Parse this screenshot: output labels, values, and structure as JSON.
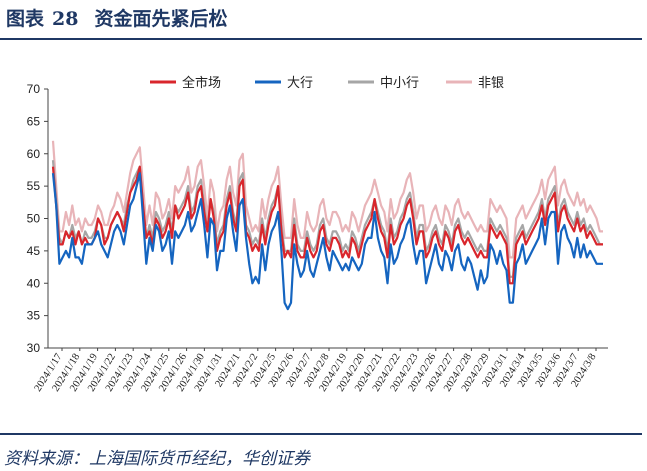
{
  "figure": {
    "label": "图表",
    "number": "28",
    "title": "资金面先紧后松",
    "source": "资料来源：上海国际货币经纪，华创证券"
  },
  "colors": {
    "brand": "#1f3864",
    "全市场": "#d9262c",
    "大行": "#1565c0",
    "中小行": "#a6a6a6",
    "非银": "#e8b4b8"
  },
  "chart_data": {
    "type": "line",
    "title": "",
    "xlabel": "",
    "ylabel": "",
    "ylim": [
      30,
      70
    ],
    "yticks": [
      30,
      35,
      40,
      45,
      50,
      55,
      60,
      65,
      70
    ],
    "grid": false,
    "legend_position": "top",
    "xtick_labels": [
      "2024/1/17",
      "2024/1/18",
      "2024/1/19",
      "2024/1/22",
      "2024/1/23",
      "2024/1/24",
      "2024/1/25",
      "2024/1/26",
      "2024/1/30",
      "2024/1/31",
      "2024/2/1",
      "2024/2/2",
      "2024/2/5",
      "2024/2/6",
      "2024/2/7",
      "2024/2/8",
      "2024/2/19",
      "2024/2/20",
      "2024/2/21",
      "2024/2/22",
      "2024/2/23",
      "2024/2/26",
      "2024/2/27",
      "2024/2/28",
      "2024/2/29",
      "2024/3/1",
      "2024/3/4",
      "2024/3/5",
      "2024/3/6",
      "2024/3/7",
      "2024/3/8"
    ],
    "series": [
      {
        "name": "全市场",
        "values": [
          58,
          52,
          46,
          46,
          48,
          47,
          48,
          46,
          48,
          46,
          47,
          46,
          46,
          47,
          50,
          49,
          46,
          47,
          49,
          50,
          51,
          50,
          48,
          51,
          54,
          55,
          56,
          58,
          52,
          47,
          48,
          46,
          50,
          49,
          47,
          48,
          50,
          47,
          52,
          50,
          51,
          52,
          54,
          50,
          51,
          54,
          55,
          51,
          48,
          53,
          50,
          45,
          47,
          48,
          52,
          54,
          50,
          48,
          55,
          56,
          48,
          47,
          45,
          46,
          45,
          49,
          46,
          49,
          51,
          52,
          55,
          48,
          44,
          45,
          44,
          49,
          45,
          44,
          44,
          47,
          45,
          44,
          45,
          48,
          49,
          46,
          45,
          47,
          47,
          46,
          44,
          45,
          44,
          47,
          46,
          44,
          46,
          48,
          49,
          50,
          53,
          50,
          48,
          47,
          44,
          49,
          46,
          47,
          49,
          50,
          52,
          53,
          50,
          46,
          48,
          48,
          44,
          45,
          47,
          48,
          46,
          45,
          48,
          47,
          45,
          48,
          49,
          47,
          46,
          47,
          46,
          45,
          44,
          45,
          44,
          44,
          49,
          48,
          47,
          48,
          47,
          46,
          40,
          40,
          46,
          47,
          48,
          46,
          47,
          48,
          49,
          50,
          52,
          49,
          52,
          53,
          54,
          48,
          51,
          52,
          50,
          49,
          48,
          50,
          48,
          49,
          47,
          48,
          47,
          46,
          46,
          46
        ]
      },
      {
        "name": "大行",
        "values": [
          57,
          52,
          43,
          44,
          45,
          44,
          47,
          44,
          44,
          43,
          46,
          46,
          46,
          47,
          48,
          46,
          45,
          44,
          46,
          48,
          49,
          48,
          46,
          49,
          52,
          53,
          55,
          57,
          50,
          43,
          47,
          45,
          49,
          48,
          45,
          46,
          48,
          43,
          48,
          47,
          48,
          49,
          51,
          48,
          49,
          51,
          53,
          49,
          44,
          50,
          49,
          42,
          45,
          45,
          50,
          52,
          48,
          45,
          52,
          53,
          47,
          43,
          40,
          41,
          40,
          46,
          42,
          46,
          48,
          49,
          51,
          45,
          37,
          36,
          37,
          46,
          43,
          41,
          42,
          45,
          42,
          41,
          43,
          45,
          47,
          44,
          42,
          45,
          44,
          43,
          42,
          43,
          42,
          44,
          43,
          42,
          43,
          46,
          47,
          47,
          51,
          47,
          45,
          44,
          40,
          46,
          43,
          44,
          46,
          47,
          49,
          50,
          46,
          43,
          45,
          45,
          40,
          42,
          44,
          46,
          43,
          42,
          45,
          44,
          42,
          45,
          46,
          43,
          42,
          44,
          43,
          41,
          39,
          42,
          40,
          41,
          46,
          45,
          43,
          45,
          43,
          42,
          37,
          37,
          43,
          44,
          46,
          43,
          44,
          45,
          46,
          47,
          50,
          46,
          50,
          51,
          51,
          43,
          48,
          49,
          47,
          46,
          44,
          47,
          44,
          46,
          44,
          45,
          44,
          43,
          43,
          43
        ]
      },
      {
        "name": "中小行",
        "values": [
          59,
          53,
          47,
          46,
          48,
          47,
          49,
          47,
          48,
          46,
          48,
          47,
          47,
          48,
          50,
          49,
          47,
          47,
          49,
          50,
          51,
          50,
          49,
          52,
          54,
          56,
          57,
          58,
          52,
          47,
          49,
          47,
          51,
          50,
          48,
          49,
          51,
          48,
          52,
          51,
          52,
          53,
          55,
          51,
          52,
          55,
          56,
          52,
          48,
          53,
          51,
          46,
          48,
          49,
          53,
          55,
          51,
          49,
          56,
          57,
          49,
          48,
          46,
          47,
          46,
          50,
          47,
          50,
          52,
          53,
          55,
          49,
          45,
          45,
          45,
          50,
          46,
          45,
          45,
          48,
          46,
          45,
          46,
          49,
          50,
          47,
          46,
          48,
          48,
          47,
          45,
          46,
          45,
          48,
          47,
          45,
          47,
          49,
          50,
          51,
          53,
          51,
          49,
          48,
          45,
          50,
          47,
          48,
          50,
          51,
          53,
          54,
          51,
          47,
          49,
          49,
          45,
          46,
          48,
          49,
          47,
          46,
          49,
          48,
          46,
          49,
          50,
          48,
          47,
          48,
          47,
          46,
          45,
          46,
          45,
          45,
          50,
          49,
          48,
          49,
          48,
          47,
          41,
          41,
          47,
          48,
          49,
          47,
          48,
          49,
          50,
          51,
          53,
          50,
          53,
          54,
          55,
          49,
          52,
          53,
          51,
          50,
          49,
          51,
          49,
          50,
          48,
          49,
          48,
          47,
          46,
          46
        ]
      },
      {
        "name": "非银",
        "values": [
          62,
          55,
          48,
          48,
          51,
          49,
          52,
          49,
          50,
          48,
          50,
          49,
          49,
          50,
          52,
          51,
          49,
          49,
          51,
          52,
          54,
          53,
          51,
          54,
          57,
          59,
          60,
          61,
          55,
          49,
          52,
          49,
          54,
          53,
          50,
          51,
          53,
          50,
          55,
          54,
          55,
          56,
          58,
          54,
          55,
          58,
          59,
          55,
          50,
          56,
          54,
          48,
          51,
          52,
          56,
          58,
          54,
          52,
          59,
          60,
          52,
          50,
          48,
          49,
          48,
          53,
          50,
          53,
          55,
          56,
          58,
          52,
          47,
          47,
          47,
          53,
          49,
          47,
          47,
          51,
          49,
          48,
          49,
          52,
          53,
          50,
          49,
          51,
          51,
          50,
          48,
          49,
          48,
          51,
          50,
          48,
          50,
          52,
          53,
          54,
          56,
          54,
          52,
          51,
          48,
          53,
          50,
          51,
          53,
          54,
          56,
          57,
          54,
          50,
          52,
          52,
          48,
          49,
          51,
          52,
          50,
          49,
          52,
          51,
          49,
          52,
          53,
          51,
          50,
          51,
          50,
          49,
          48,
          49,
          48,
          48,
          53,
          52,
          51,
          52,
          51,
          50,
          44,
          44,
          50,
          51,
          52,
          50,
          51,
          52,
          53,
          54,
          56,
          53,
          56,
          57,
          58,
          52,
          55,
          56,
          54,
          53,
          52,
          54,
          52,
          53,
          51,
          52,
          51,
          50,
          48,
          48
        ]
      }
    ]
  }
}
